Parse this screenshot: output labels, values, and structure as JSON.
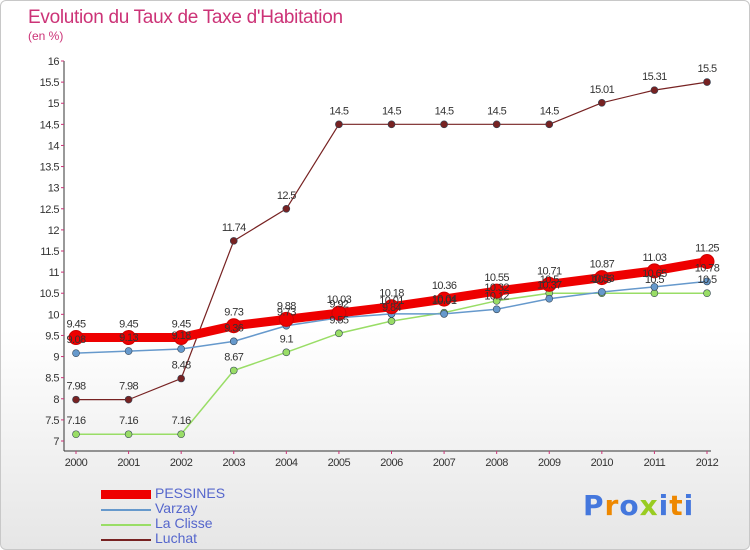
{
  "title": "Evolution du Taux de Taxe d'Habitation",
  "unit": "(en %)",
  "logo": "Proxiti",
  "chart_data": {
    "type": "line",
    "title": "Evolution du Taux de Taxe d'Habitation",
    "ylabel": "(en %)",
    "xlabel": "",
    "x": [
      2000,
      2001,
      2002,
      2003,
      2004,
      2005,
      2006,
      2007,
      2008,
      2009,
      2010,
      2011,
      2012
    ],
    "ylim": [
      7,
      16
    ],
    "yticks": [
      7,
      7.5,
      8,
      8.5,
      9,
      9.5,
      10,
      10.5,
      11,
      11.5,
      12,
      12.5,
      13,
      13.5,
      14,
      14.5,
      15,
      15.5,
      16
    ],
    "grid": false,
    "legend": "bottom-left",
    "series": [
      {
        "name": "PESSINES",
        "color": "#ee0000",
        "values": [
          9.45,
          9.45,
          9.45,
          9.73,
          9.88,
          10.03,
          10.18,
          10.36,
          10.55,
          10.71,
          10.87,
          11.03,
          11.25
        ]
      },
      {
        "name": "Varzay",
        "color": "#6699cc",
        "values": [
          9.08,
          9.13,
          9.18,
          9.36,
          9.73,
          9.92,
          10.01,
          10.01,
          10.12,
          10.37,
          10.53,
          10.65,
          10.78
        ]
      },
      {
        "name": "La Clisse",
        "color": "#99dd66",
        "values": [
          7.16,
          7.16,
          7.16,
          8.67,
          9.1,
          9.55,
          9.84,
          10.04,
          10.32,
          10.5,
          10.5,
          10.5,
          10.5
        ]
      },
      {
        "name": "Luchat",
        "color": "#772222",
        "values": [
          7.98,
          7.98,
          8.48,
          11.74,
          12.5,
          14.5,
          14.5,
          14.5,
          14.5,
          14.5,
          15.01,
          15.31,
          15.5
        ]
      }
    ]
  }
}
